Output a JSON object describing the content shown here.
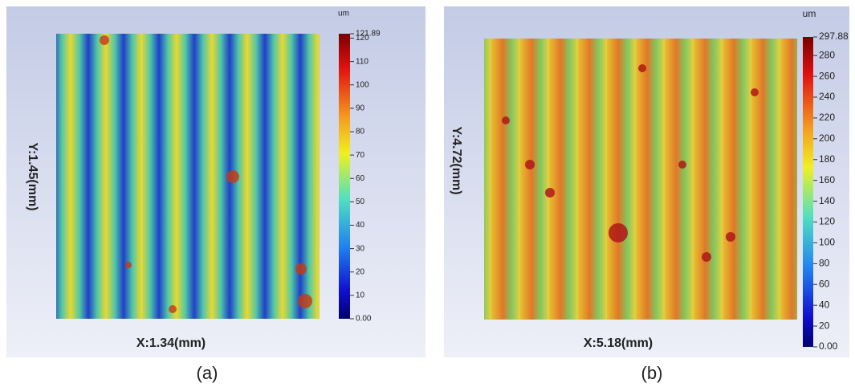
{
  "panels": [
    {
      "caption": "(a)",
      "x_label": "X:1.34(mm)",
      "y_label": "Y:1.45(mm)",
      "unit": "um",
      "colorbar": {
        "ticks": [
          "121.89",
          "120",
          "110",
          "100",
          "90",
          "80",
          "70",
          "60",
          "50",
          "40",
          "30",
          "20",
          "10",
          "0.00"
        ]
      }
    },
    {
      "caption": "(b)",
      "x_label": "X:5.18(mm)",
      "y_label": "Y:4.72(mm)",
      "unit": "um",
      "colorbar": {
        "ticks": [
          "297.88",
          "280",
          "260",
          "240",
          "220",
          "200",
          "180",
          "160",
          "140",
          "120",
          "100",
          "80",
          "60",
          "40",
          "20",
          "0.00"
        ]
      }
    }
  ]
}
